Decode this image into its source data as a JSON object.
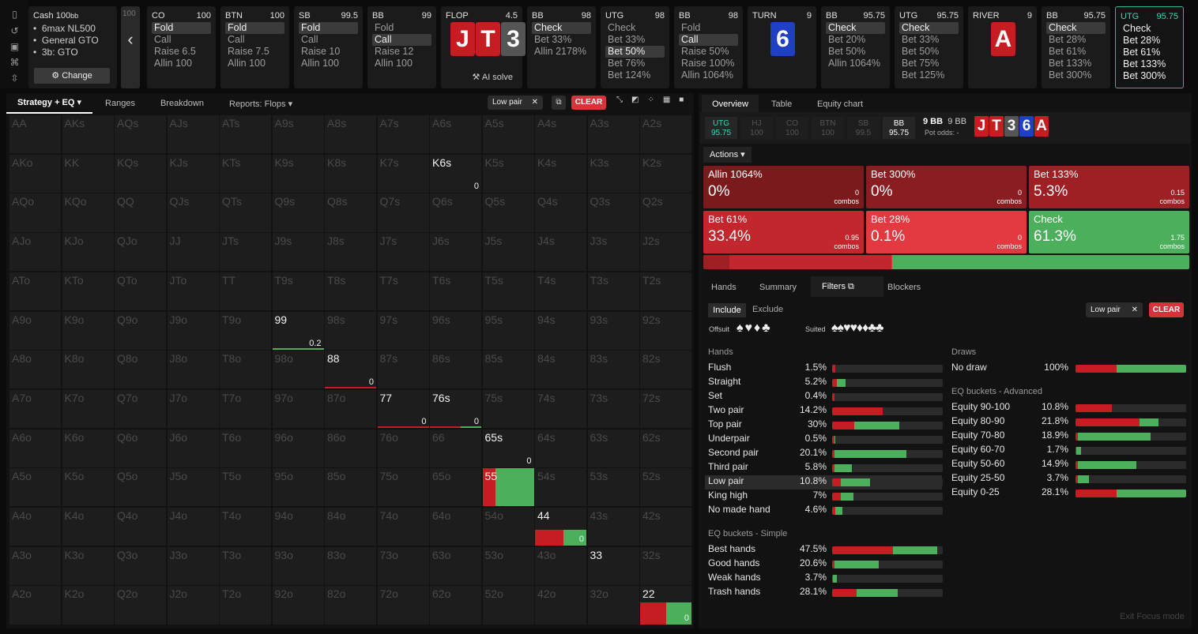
{
  "rail_icons": [
    "bookmark-icon",
    "history-icon",
    "save-icon",
    "gamepad-icon",
    "collapse-icon"
  ],
  "game": {
    "title": "Cash",
    "stack": "100",
    "stack_unit": "bb",
    "lines": [
      "6max NL500",
      "General GTO",
      "3b: GTO"
    ],
    "change": "Change"
  },
  "partial_card": "100",
  "back": "‹",
  "nodes": [
    {
      "pos": "CO",
      "stack": "100",
      "actions": [
        "Fold",
        "Call",
        "Raise 6.5",
        "Allin 100"
      ],
      "sel": 0
    },
    {
      "pos": "BTN",
      "stack": "100",
      "actions": [
        "Fold",
        "Call",
        "Raise 7.5",
        "Allin 100"
      ],
      "sel": 0
    },
    {
      "pos": "SB",
      "stack": "99.5",
      "actions": [
        "Fold",
        "Call",
        "Raise 10",
        "Allin 100"
      ],
      "sel": 0
    },
    {
      "pos": "BB",
      "stack": "99",
      "actions": [
        "Fold",
        "Call",
        "Raise 12",
        "Allin 100"
      ],
      "sel": 1
    }
  ],
  "flop": {
    "label": "FLOP",
    "pot": "4.5",
    "cards": [
      "J",
      "T",
      "3"
    ],
    "ai": "AI solve"
  },
  "nodes2": [
    {
      "pos": "BB",
      "stack": "98",
      "actions": [
        "Check",
        "Bet 33%",
        "Allin 2178%"
      ],
      "sel": 0
    },
    {
      "pos": "UTG",
      "stack": "98",
      "actions": [
        "Check",
        "Bet 33%",
        "Bet 50%",
        "Bet 76%",
        "Bet 124%"
      ],
      "sel": 2
    },
    {
      "pos": "BB",
      "stack": "98",
      "actions": [
        "Fold",
        "Call",
        "Raise 50%",
        "Raise 100%",
        "Allin 1064%"
      ],
      "sel": 1
    }
  ],
  "turn": {
    "label": "TURN",
    "pot": "9",
    "card": "6"
  },
  "nodes3": [
    {
      "pos": "BB",
      "stack": "95.75",
      "actions": [
        "Check",
        "Bet 20%",
        "Bet 50%",
        "Allin 1064%"
      ],
      "sel": 0
    },
    {
      "pos": "UTG",
      "stack": "95.75",
      "actions": [
        "Check",
        "Bet 33%",
        "Bet 50%",
        "Bet 75%",
        "Bet 125%"
      ],
      "sel": 0
    }
  ],
  "river": {
    "label": "RIVER",
    "pot": "9",
    "card": "A"
  },
  "nodes4": [
    {
      "pos": "BB",
      "stack": "95.75",
      "actions": [
        "Check",
        "Bet 28%",
        "Bet 61%",
        "Bet 133%",
        "Bet 300%"
      ],
      "sel": 0
    },
    {
      "pos": "UTG",
      "stack": "95.75",
      "actions": [
        "Check",
        "Bet 28%",
        "Bet 61%",
        "Bet 133%",
        "Bet 300%"
      ],
      "sel": -1
    }
  ],
  "left_tabs": [
    "Strategy + EQ",
    "Ranges",
    "Breakdown",
    "Reports: Flops"
  ],
  "filter_chip": "Low pair",
  "clear": "CLEAR",
  "ranks": [
    "A",
    "K",
    "Q",
    "J",
    "T",
    "9",
    "8",
    "7",
    "6",
    "5",
    "4",
    "3",
    "2"
  ],
  "active_cells": {
    "K6s": "0",
    "99": "0.2",
    "88": "0",
    "77": "0",
    "76s": "0",
    "65s": "0",
    "55": "",
    "44": "0",
    "33": "",
    "22": "0"
  },
  "right_tabs": [
    "Overview",
    "Table",
    "Equity chart"
  ],
  "positions": [
    {
      "p": "UTG",
      "s": "95.75"
    },
    {
      "p": "HJ",
      "s": "100"
    },
    {
      "p": "CO",
      "s": "100"
    },
    {
      "p": "BTN",
      "s": "100"
    },
    {
      "p": "SB",
      "s": "99.5"
    },
    {
      "p": "BB",
      "s": "95.75"
    }
  ],
  "pot": "9 BB",
  "pot2": "9 BB",
  "potodds": "Pot odds:  -",
  "board": [
    "J",
    "T",
    "3",
    "6",
    "A"
  ],
  "actions_label": "Actions",
  "actions": [
    {
      "n": "Allin 1064%",
      "p": "0%",
      "c": "0",
      "col": "#7a1a1d"
    },
    {
      "n": "Bet 300%",
      "p": "0%",
      "c": "0",
      "col": "#8a1d21"
    },
    {
      "n": "Bet 133%",
      "p": "5.3%",
      "c": "0.15",
      "col": "#9e1f24"
    },
    {
      "n": "Bet 61%",
      "p": "33.4%",
      "c": "0.95",
      "col": "#c1272d"
    },
    {
      "n": "Bet 28%",
      "p": "0.1%",
      "c": "0",
      "col": "#e23a40"
    },
    {
      "n": "Check",
      "p": "61.3%",
      "c": "1.75",
      "col": "#4caf5b"
    }
  ],
  "combos": "combos",
  "sub_tabs": [
    "Hands",
    "Summary",
    "Filters",
    "Blockers"
  ],
  "incl": [
    "Include",
    "Exclude"
  ],
  "offsuit": "Offsuit",
  "suited": "Suited",
  "hands_title": "Hands",
  "hands": [
    [
      "Flush",
      "1.5%"
    ],
    [
      "Straight",
      "5.2%"
    ],
    [
      "Set",
      "0.4%"
    ],
    [
      "Two pair",
      "14.2%"
    ],
    [
      "Top pair",
      "30%"
    ],
    [
      "Underpair",
      "0.5%"
    ],
    [
      "Second pair",
      "20.1%"
    ],
    [
      "Third pair",
      "5.8%"
    ],
    [
      "Low pair",
      "10.8%"
    ],
    [
      "King high",
      "7%"
    ],
    [
      "No made hand",
      "4.6%"
    ]
  ],
  "eqs_title": "EQ buckets - Simple",
  "eqs": [
    [
      "Best hands",
      "47.5%"
    ],
    [
      "Good hands",
      "20.6%"
    ],
    [
      "Weak hands",
      "3.7%"
    ],
    [
      "Trash hands",
      "28.1%"
    ]
  ],
  "draws_title": "Draws",
  "draws": [
    [
      "No draw",
      "100%"
    ]
  ],
  "eqa_title": "EQ buckets - Advanced",
  "eqa": [
    [
      "Equity 90-100",
      "10.8%"
    ],
    [
      "Equity 80-90",
      "21.8%"
    ],
    [
      "Equity 70-80",
      "18.9%"
    ],
    [
      "Equity 60-70",
      "1.7%"
    ],
    [
      "Equity 50-60",
      "14.9%"
    ],
    [
      "Equity 25-50",
      "3.7%"
    ],
    [
      "Equity 0-25",
      "28.1%"
    ]
  ],
  "exit": "Exit Focus mode",
  "colors": {
    "red": "#c61d23",
    "green": "#4caf5b",
    "teal": "#2fb59e"
  }
}
